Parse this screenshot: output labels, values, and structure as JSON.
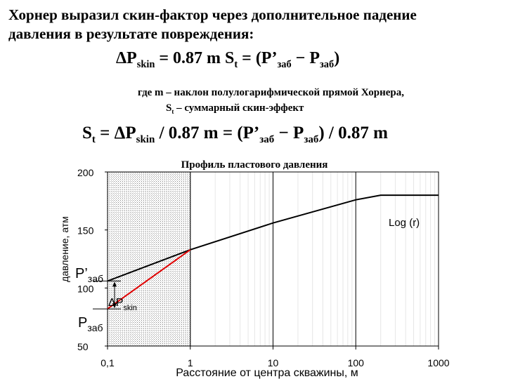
{
  "intro": {
    "line1": "Хорнер выразил скин-фактор через дополнительное падение",
    "line2": "давления в результате повреждения:"
  },
  "formula1": {
    "lhs": "ΔP",
    "lhs_sub": "skin",
    "mid": " = 0.87 m S",
    "mid_sub": "t",
    "rhs1": " = (P’",
    "rhs1_sub": "заб",
    "rhs2": " − P",
    "rhs2_sub": "заб",
    "close": ")"
  },
  "where": {
    "line1": "где   m – наклон полулогарифмической прямой Хорнера,",
    "line2_pre": "S",
    "line2_sub": "t",
    "line2_post": " – суммарный скин-эффект"
  },
  "formula2": {
    "a": "S",
    "a_sub": "t",
    "b": " = ΔP",
    "b_sub": "skin",
    "c": " / 0.87 m = (P’",
    "c_sub": "заб",
    "d": " − P",
    "d_sub": "заб",
    "e": ") / 0.87 m"
  },
  "chart_data": {
    "type": "line",
    "title": "Профиль пластового давления",
    "xlabel": "Расстояние от центра скважины, м",
    "ylabel": "давление, атм",
    "x_scale": "log",
    "xlim": [
      0.1,
      1000
    ],
    "ylim": [
      50,
      200
    ],
    "x_ticks": [
      0.1,
      1,
      10,
      100,
      1000
    ],
    "x_tick_labels": [
      "0,1",
      "1",
      "10",
      "100",
      "1000"
    ],
    "y_ticks": [
      50,
      100,
      150,
      200
    ],
    "y_tick_labels": [
      "50",
      "100",
      "150",
      "200"
    ],
    "grid": "vertical major and minor lines",
    "damaged_zone": {
      "x_from": 0.1,
      "x_to": 1,
      "fill": "hatched gray"
    },
    "series": [
      {
        "color": "#000000",
        "x": [
          0.1,
          1,
          10,
          100,
          200,
          1000
        ],
        "y": [
          106,
          133,
          156,
          176,
          180,
          180
        ]
      },
      {
        "color": "#e00000",
        "x": [
          0.1,
          1
        ],
        "y": [
          82,
          133
        ]
      }
    ],
    "annotations": {
      "log_label": "Log (r)",
      "p_prime": "P’",
      "p_prime_sub": "заб",
      "p": "P",
      "p_sub": "заб",
      "dp": "ΔP",
      "dp_sub": "skin",
      "p_prime_value": 106,
      "p_value": 82
    }
  }
}
